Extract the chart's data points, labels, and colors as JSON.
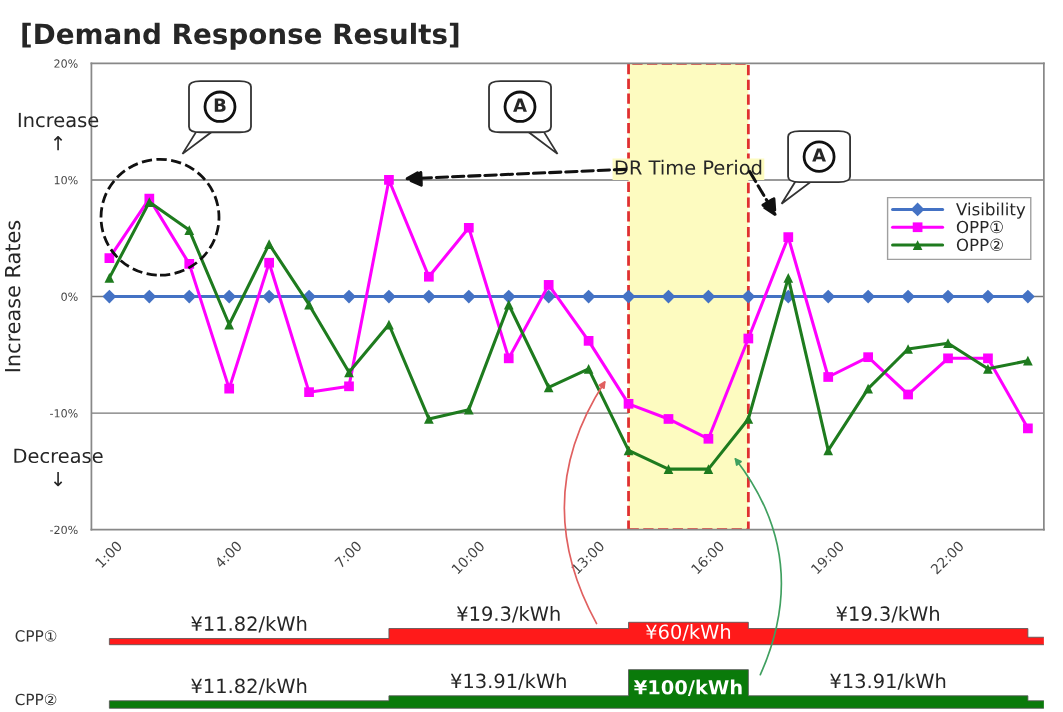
{
  "chart_data": [
    {
      "type": "line",
      "title": "[Demand Response Results]",
      "ylabel": "Increase Rates",
      "x": [
        1,
        2,
        3,
        4,
        5,
        6,
        7,
        8,
        9,
        10,
        11,
        12,
        13,
        14,
        15,
        16,
        17,
        18,
        19,
        20,
        21,
        22,
        23,
        24
      ],
      "series": [
        {
          "name": "Visibility",
          "color": "#4472c4",
          "marker": "diamond",
          "values": [
            0,
            0,
            0,
            0,
            0,
            0,
            0,
            0,
            0,
            0,
            0,
            0,
            0,
            0,
            0,
            0,
            0,
            0,
            0,
            0,
            0,
            0,
            0,
            0
          ]
        },
        {
          "name": "OPP①",
          "color": "#ff00ff",
          "marker": "square",
          "values": [
            3.3,
            8.4,
            2.8,
            -7.9,
            2.9,
            -8.2,
            -7.7,
            10.0,
            1.7,
            5.9,
            -5.3,
            1.0,
            -3.8,
            -9.2,
            -10.5,
            -12.2,
            -3.6,
            5.1,
            -6.9,
            -5.2,
            -8.4,
            -5.3,
            -5.3,
            -11.3
          ]
        },
        {
          "name": "OPP②",
          "color": "#1e7b1e",
          "marker": "triangle",
          "values": [
            1.6,
            8.1,
            5.7,
            -2.4,
            4.5,
            -0.7,
            -6.5,
            -2.4,
            -10.5,
            -9.7,
            -0.7,
            -7.8,
            -6.2,
            -13.2,
            -14.8,
            -14.8,
            -10.5,
            1.6,
            -13.2,
            -7.9,
            -4.5,
            -4.0,
            -6.2,
            -5.5
          ]
        }
      ],
      "xlim": [
        0.55,
        24.4
      ],
      "xticks": [
        {
          "value": 1,
          "label": "1:00"
        },
        {
          "value": 4,
          "label": "4:00"
        },
        {
          "value": 7,
          "label": "7:00"
        },
        {
          "value": 10,
          "label": "10:00"
        },
        {
          "value": 13,
          "label": "13:00"
        },
        {
          "value": 16,
          "label": "16:00"
        },
        {
          "value": 19,
          "label": "19:00"
        },
        {
          "value": 22,
          "label": "22:00"
        }
      ],
      "ylim": [
        -20,
        20
      ],
      "yticks": [
        {
          "value": -20,
          "label": "-20%"
        },
        {
          "value": -10,
          "label": "-10%"
        },
        {
          "value": 0,
          "label": "0%"
        },
        {
          "value": 10,
          "label": "10%"
        },
        {
          "value": 20,
          "label": "20%"
        }
      ],
      "grid": "y",
      "legend": "top right",
      "bands": [
        {
          "axis": "x",
          "from": 14,
          "to": 17,
          "label": "DR Time Period",
          "color": "#fdfbc0"
        }
      ],
      "annotations": [
        "Increase\n↑",
        "Decrease\n↓",
        "B",
        "A",
        "A"
      ]
    },
    {
      "type": "other",
      "annotations": [
        "CPP①",
        "¥11.82/kWh",
        "¥19.3/kWh",
        "¥60/kWh",
        "¥19.3/kWh",
        "CPP②",
        "¥11.82/kWh",
        "¥13.91/kWh",
        "¥100/kWh",
        "¥13.91/kWh"
      ]
    }
  ]
}
